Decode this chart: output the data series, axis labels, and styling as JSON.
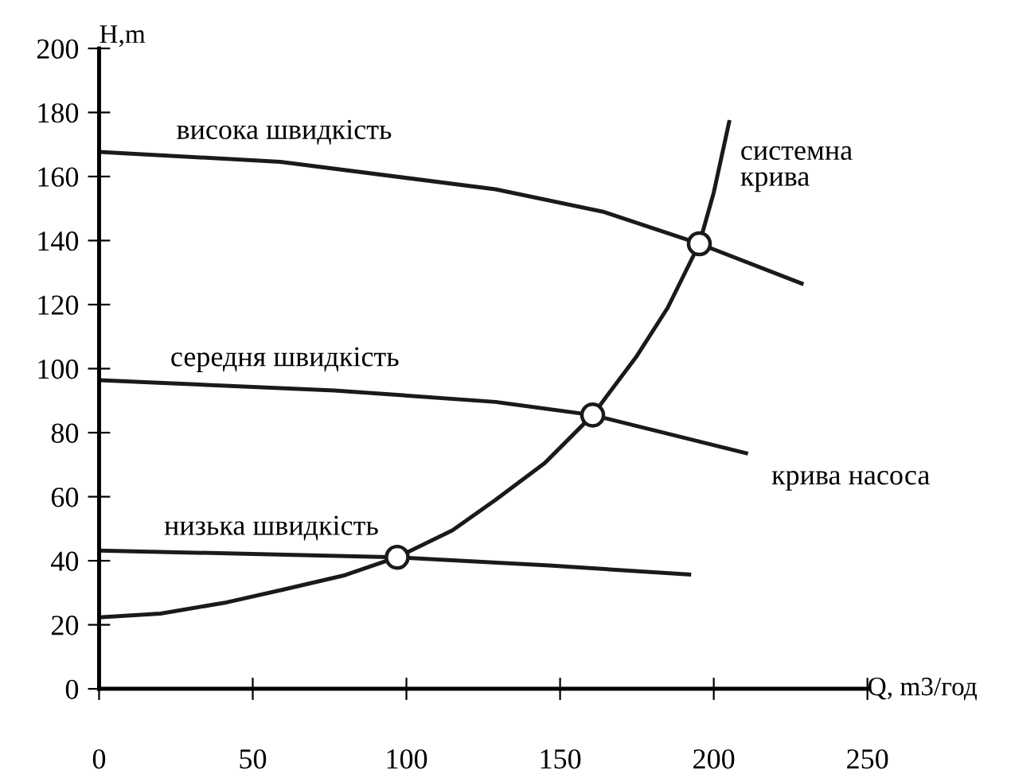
{
  "chart_data": {
    "type": "line",
    "xlabel": "Q, m3/год",
    "ylabel": "H,m",
    "xlim": [
      0,
      250
    ],
    "xticks": [
      0,
      50,
      100,
      150,
      200,
      250
    ],
    "ylim": [
      0,
      200
    ],
    "yticks": [
      0,
      20,
      40,
      60,
      80,
      100,
      120,
      140,
      160,
      180,
      200
    ],
    "grid": false,
    "marker": "none",
    "line_style": "solid",
    "series": [
      {
        "name": "висока швидкість",
        "color": "#1a1a1a",
        "x": [
          0,
          59,
          129,
          164,
          195.3,
          228.6
        ],
        "values": [
          167.7,
          164.6,
          156,
          149,
          139,
          126.6
        ]
      },
      {
        "name": "середня швидкість",
        "color": "#1a1a1a",
        "x": [
          0,
          76.6,
          129,
          160.6,
          210.5
        ],
        "values": [
          96.4,
          93.2,
          89.6,
          85.5,
          73.6
        ]
      },
      {
        "name": "низька швидкість",
        "color": "#1a1a1a",
        "x": [
          0,
          41.5,
          97,
          146.5,
          192
        ],
        "values": [
          43.2,
          42.3,
          41.1,
          38.5,
          35.7
        ]
      },
      {
        "name": "системна\nкрива",
        "color": "#1a1a1a",
        "x": [
          0,
          20,
          41.5,
          60,
          80,
          97,
          115,
          129,
          145,
          160.6,
          175,
          185,
          195.3,
          200,
          205
        ],
        "values": [
          22.3,
          23.5,
          27,
          31,
          35.5,
          41.1,
          49.5,
          59,
          70.5,
          85.5,
          104,
          119,
          139,
          155,
          177
        ]
      },
      {
        "type": "scatter",
        "marker": "circle",
        "color": "#1a1a1a",
        "x": [
          97,
          160.6,
          195.3
        ],
        "values": [
          41.1,
          85.5,
          139
        ]
      }
    ],
    "annotations": [
      "крива насоса"
    ]
  }
}
